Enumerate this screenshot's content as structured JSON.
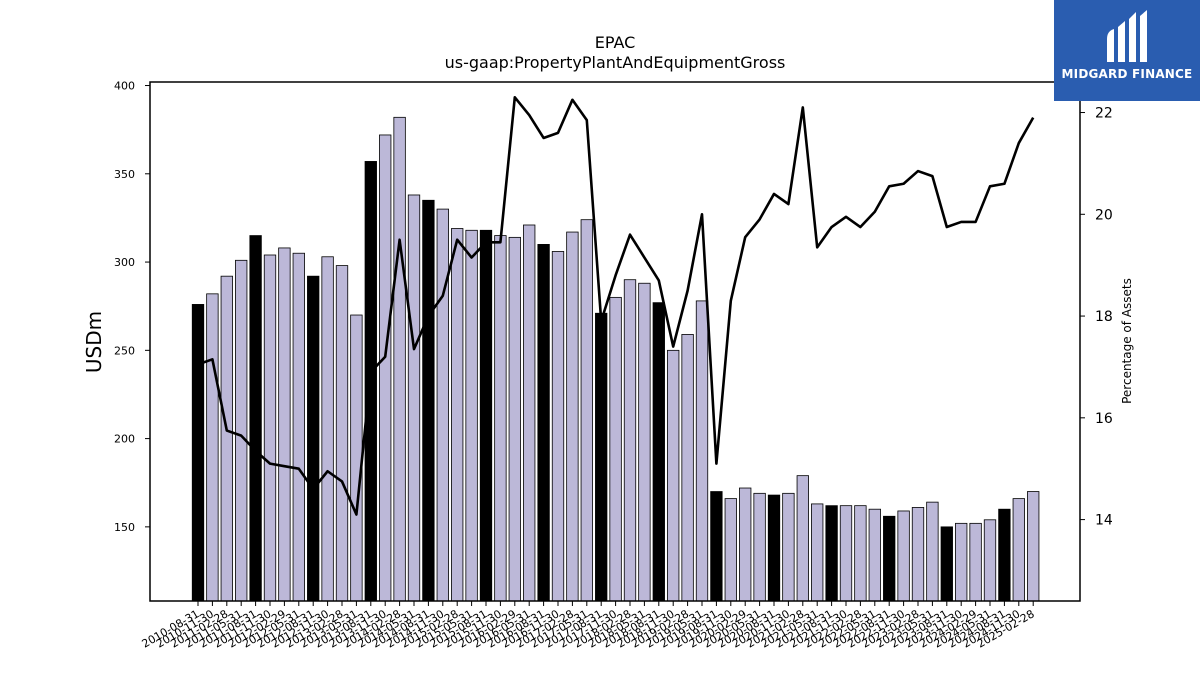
{
  "chart_data": {
    "type": "bar",
    "title": "EPAC",
    "subtitle": "us-gaap:PropertyPlantAndEquipmentGross",
    "ylabel": "USDm",
    "ylabel_right": "Percentage of Assets",
    "ylim": [
      108,
      402
    ],
    "ylim_right": [
      12.4,
      22.6
    ],
    "yticks": [
      150,
      200,
      250,
      300,
      350,
      400
    ],
    "yticks_right": [
      14,
      16,
      18,
      20,
      22
    ],
    "categories": [
      "2010-08-31",
      "2010-11-30",
      "2011-02-28",
      "2011-05-31",
      "2011-08-31",
      "2011-11-30",
      "2012-02-29",
      "2012-05-31",
      "2012-08-31",
      "2012-11-30",
      "2013-02-28",
      "2013-05-31",
      "2013-08-31",
      "2013-11-30",
      "2014-02-28",
      "2014-05-31",
      "2014-08-31",
      "2014-11-30",
      "2015-02-28",
      "2015-05-31",
      "2015-08-31",
      "2015-11-30",
      "2016-02-29",
      "2016-05-31",
      "2016-08-31",
      "2016-11-30",
      "2017-02-28",
      "2017-05-31",
      "2017-08-31",
      "2017-11-30",
      "2018-02-28",
      "2018-05-31",
      "2018-08-31",
      "2018-11-30",
      "2019-02-28",
      "2019-05-31",
      "2019-08-31",
      "2019-11-30",
      "2020-02-29",
      "2020-05-31",
      "2020-08-31",
      "2020-11-30",
      "2021-02-28",
      "2021-05-31",
      "2021-08-31",
      "2021-11-30",
      "2022-02-28",
      "2022-05-31",
      "2022-08-31",
      "2022-11-30",
      "2023-02-28",
      "2023-05-31",
      "2023-08-31",
      "2023-11-30",
      "2024-02-29",
      "2024-05-31",
      "2024-08-31",
      "2024-11-30",
      "2025-02-28"
    ],
    "series": [
      {
        "values": [
          276,
          282,
          292,
          301,
          315,
          304,
          308,
          305,
          292,
          303,
          298,
          270,
          357,
          372,
          382,
          338,
          335,
          330,
          319,
          318,
          318,
          315,
          314,
          321,
          310,
          306,
          317,
          324,
          271,
          280,
          290,
          288,
          277,
          250,
          259,
          278,
          170,
          166,
          172,
          169,
          168,
          169,
          179,
          163,
          162,
          162,
          162,
          160,
          156,
          159,
          161,
          164,
          150,
          152,
          152,
          154,
          160,
          166,
          170
        ]
      },
      {
        "values": [
          17.05,
          17.15,
          15.75,
          15.65,
          15.35,
          15.1,
          15.05,
          15.0,
          14.6,
          14.95,
          14.75,
          14.1,
          16.9,
          17.2,
          19.5,
          17.35,
          18.0,
          18.4,
          19.5,
          19.15,
          19.45,
          19.45,
          22.3,
          21.95,
          21.5,
          21.6,
          22.25,
          21.85,
          17.9,
          18.8,
          19.6,
          19.15,
          18.7,
          17.4,
          18.5,
          20.0,
          15.1,
          18.3,
          19.55,
          19.9,
          20.4,
          20.2,
          22.1,
          19.35,
          19.75,
          19.95,
          19.75,
          20.05,
          20.55,
          20.6,
          20.85,
          20.75,
          19.75,
          19.85,
          19.85,
          20.55,
          20.6,
          21.4,
          21.9
        ]
      }
    ],
    "bar_colors": {
      "default": "#bcb8d8",
      "quarter_highlight": "#000000"
    },
    "highlight_months": [
      "08"
    ],
    "line_color": "#000000",
    "grid": false,
    "legend": "none"
  },
  "branding": {
    "logo_text": "MIDGARD FINANCE",
    "logo_color": "#2a5db0"
  }
}
